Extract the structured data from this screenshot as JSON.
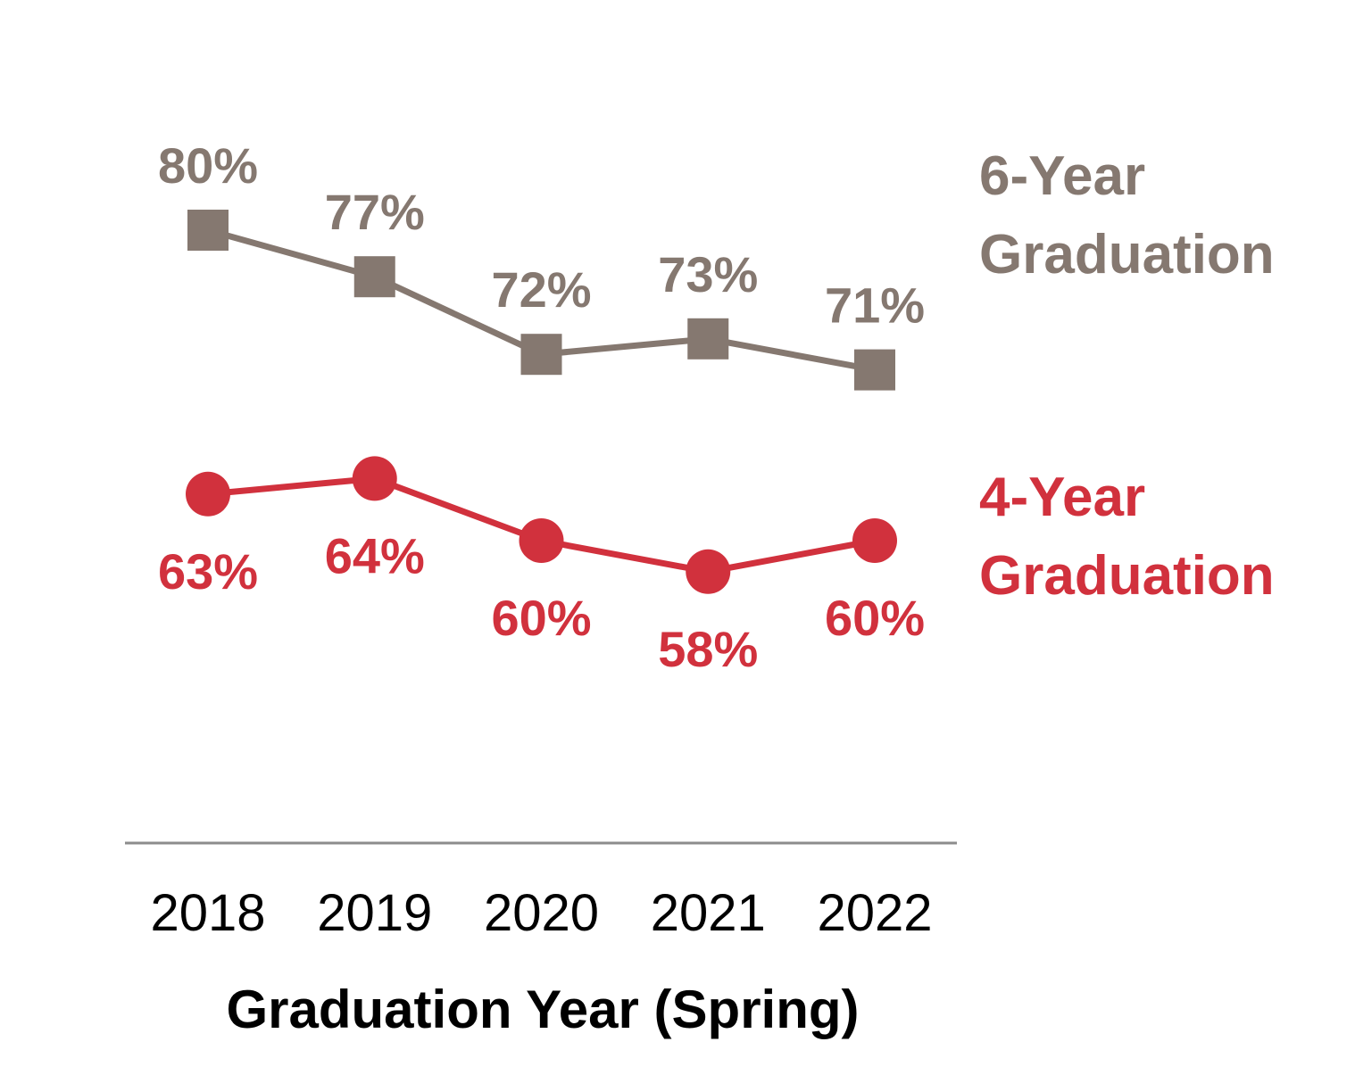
{
  "chart_data": {
    "type": "line",
    "categories": [
      "2018",
      "2019",
      "2020",
      "2021",
      "2022"
    ],
    "xlabel": "Graduation Year (Spring)",
    "ylabel": "",
    "ylim": [
      50,
      85
    ],
    "grid": false,
    "legend": "right, inline labels",
    "series": [
      {
        "key": "six_year",
        "name": "6-Year Graduation",
        "name_lines": [
          "6-Year",
          "Graduation"
        ],
        "values": [
          80,
          77,
          72,
          73,
          71
        ],
        "labels": [
          "80%",
          "77%",
          "72%",
          "73%",
          "71%"
        ],
        "marker": "square",
        "color": "#857870"
      },
      {
        "key": "four_year",
        "name": "4-Year Graduation",
        "name_lines": [
          "4-Year",
          "Graduation"
        ],
        "values": [
          63,
          64,
          60,
          58,
          60
        ],
        "labels": [
          "63%",
          "64%",
          "60%",
          "58%",
          "60%"
        ],
        "marker": "circle",
        "color": "#d1313d"
      }
    ],
    "colors": {
      "axis": "#8c8c8c",
      "tick_text": "#000000",
      "axis_title": "#000000"
    }
  }
}
